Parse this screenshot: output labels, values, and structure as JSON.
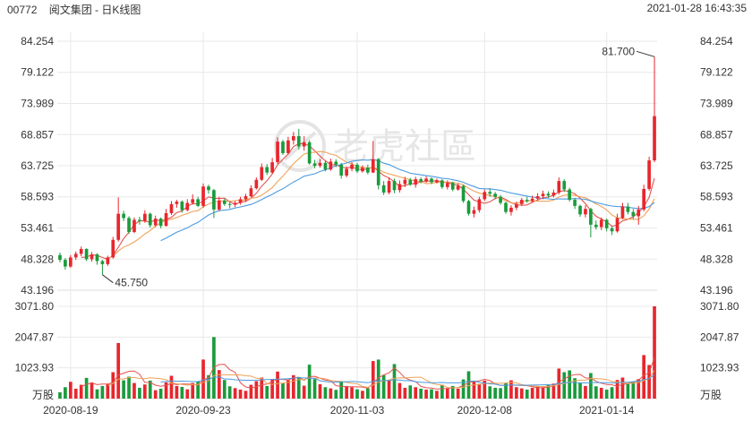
{
  "header": {
    "stock_code": "00772",
    "stock_name": "阅文集团 - 日K线图",
    "datetime": "2021-01-28 16:43:35"
  },
  "watermark": "老虎社區",
  "colors": {
    "up": "#e8262d",
    "down": "#1a9b3c",
    "ma5": "#e2534f",
    "ma10": "#f0a257",
    "ma20": "#4b9be0",
    "grid": "#e8e8e8"
  },
  "chart_data": {
    "type": "candlestick",
    "price_axis": {
      "ticks": [
        "84.254",
        "79.122",
        "73.989",
        "68.857",
        "63.725",
        "58.593",
        "53.461",
        "48.328",
        "43.196"
      ],
      "range": [
        43.196,
        84.254
      ]
    },
    "volume_axis": {
      "ticks": [
        "3071.80",
        "2047.87",
        "1023.93"
      ],
      "unit_label": "万股",
      "range": [
        0,
        3071.8
      ]
    },
    "date_labels": [
      "2020-08-19",
      "2020-09-23",
      "2020-11-03",
      "2020-12-08",
      "2021-01-14"
    ],
    "annotations": {
      "high": "81.700",
      "low": "45.750"
    },
    "moving_averages": [
      "MA5",
      "MA10",
      "MA20"
    ],
    "candles": [
      [
        49.0,
        48.2,
        49.4,
        47.8,
        210
      ],
      [
        48.2,
        47.1,
        48.5,
        46.6,
        380
      ],
      [
        47.1,
        48.6,
        49.0,
        46.9,
        560
      ],
      [
        48.6,
        49.2,
        49.6,
        48.2,
        330
      ],
      [
        49.2,
        50.0,
        50.4,
        48.8,
        460
      ],
      [
        50.0,
        48.3,
        50.1,
        48.0,
        690
      ],
      [
        48.3,
        49.1,
        49.5,
        47.9,
        540
      ],
      [
        49.1,
        48.0,
        49.3,
        47.4,
        310
      ],
      [
        48.0,
        47.5,
        48.2,
        45.75,
        420
      ],
      [
        47.5,
        48.6,
        48.9,
        47.2,
        480
      ],
      [
        48.6,
        51.5,
        52.0,
        48.4,
        880
      ],
      [
        51.5,
        55.8,
        58.5,
        51.2,
        1850
      ],
      [
        55.8,
        55.1,
        56.3,
        54.6,
        610
      ],
      [
        55.1,
        52.8,
        55.4,
        52.5,
        730
      ],
      [
        52.8,
        54.8,
        55.2,
        52.6,
        520
      ],
      [
        54.8,
        54.6,
        55.3,
        54.0,
        360
      ],
      [
        54.6,
        55.8,
        56.4,
        54.3,
        470
      ],
      [
        55.8,
        53.9,
        56.0,
        53.5,
        600
      ],
      [
        53.9,
        55.0,
        55.5,
        53.6,
        280
      ],
      [
        55.0,
        53.8,
        55.2,
        53.4,
        330
      ],
      [
        53.8,
        55.9,
        56.6,
        53.7,
        540
      ],
      [
        55.9,
        57.4,
        57.9,
        55.6,
        760
      ],
      [
        57.4,
        57.8,
        58.1,
        56.8,
        420
      ],
      [
        57.8,
        56.4,
        58.0,
        56.0,
        390
      ],
      [
        56.4,
        57.6,
        58.2,
        56.2,
        310
      ],
      [
        57.6,
        58.2,
        59.0,
        57.3,
        520
      ],
      [
        58.2,
        57.1,
        58.6,
        56.9,
        580
      ],
      [
        57.1,
        60.3,
        60.8,
        56.8,
        1300
      ],
      [
        60.3,
        59.7,
        60.6,
        59.1,
        780
      ],
      [
        59.7,
        56.5,
        59.9,
        55.1,
        2050
      ],
      [
        56.5,
        58.0,
        58.6,
        56.2,
        950
      ],
      [
        58.0,
        57.4,
        58.3,
        57.1,
        620
      ],
      [
        57.4,
        57.3,
        57.9,
        56.7,
        410
      ],
      [
        57.3,
        57.6,
        57.9,
        56.9,
        350
      ],
      [
        57.6,
        58.2,
        58.6,
        57.3,
        300
      ],
      [
        58.2,
        58.7,
        59.1,
        57.8,
        260
      ],
      [
        58.7,
        60.0,
        60.5,
        58.5,
        460
      ],
      [
        60.0,
        61.4,
        61.8,
        59.8,
        580
      ],
      [
        61.4,
        63.5,
        64.1,
        61.2,
        700
      ],
      [
        63.5,
        62.6,
        64.0,
        62.2,
        420
      ],
      [
        62.6,
        64.3,
        65.0,
        62.4,
        650
      ],
      [
        64.3,
        67.7,
        68.4,
        64.0,
        900
      ],
      [
        67.7,
        65.8,
        68.0,
        65.5,
        520
      ],
      [
        65.8,
        67.9,
        68.5,
        65.6,
        610
      ],
      [
        67.9,
        68.6,
        69.3,
        67.2,
        780
      ],
      [
        68.6,
        66.9,
        69.8,
        66.4,
        720
      ],
      [
        66.9,
        67.6,
        68.6,
        66.2,
        430
      ],
      [
        67.6,
        64.1,
        67.9,
        63.9,
        1130
      ],
      [
        64.1,
        63.7,
        64.7,
        63.3,
        650
      ],
      [
        63.7,
        64.2,
        64.8,
        63.4,
        480
      ],
      [
        64.2,
        63.1,
        64.6,
        62.8,
        380
      ],
      [
        63.1,
        64.4,
        64.9,
        62.9,
        340
      ],
      [
        64.4,
        63.9,
        64.8,
        63.5,
        290
      ],
      [
        63.9,
        62.1,
        64.2,
        61.6,
        560
      ],
      [
        62.1,
        63.2,
        63.6,
        61.8,
        420
      ],
      [
        63.2,
        63.9,
        64.3,
        62.8,
        380
      ],
      [
        63.9,
        62.8,
        64.2,
        62.5,
        310
      ],
      [
        62.8,
        63.4,
        63.8,
        62.6,
        260
      ],
      [
        63.4,
        62.6,
        63.9,
        62.3,
        340
      ],
      [
        62.6,
        64.8,
        67.8,
        62.5,
        1250
      ],
      [
        64.8,
        60.5,
        65.0,
        59.8,
        1300
      ],
      [
        60.5,
        59.3,
        61.2,
        58.9,
        780
      ],
      [
        59.3,
        61.2,
        61.8,
        59.0,
        620
      ],
      [
        61.2,
        59.7,
        61.6,
        59.2,
        1150
      ],
      [
        59.7,
        60.7,
        61.3,
        59.3,
        520
      ],
      [
        60.7,
        61.4,
        61.9,
        60.2,
        360
      ],
      [
        61.4,
        60.6,
        61.7,
        60.4,
        440
      ],
      [
        60.6,
        61.5,
        61.9,
        60.1,
        380
      ],
      [
        61.5,
        61.1,
        61.8,
        60.8,
        330
      ],
      [
        61.1,
        61.6,
        62.0,
        60.9,
        300
      ],
      [
        61.6,
        61.0,
        61.8,
        60.7,
        310
      ],
      [
        61.0,
        61.3,
        61.6,
        60.8,
        260
      ],
      [
        61.3,
        60.2,
        61.5,
        59.9,
        460
      ],
      [
        60.2,
        60.9,
        61.3,
        59.8,
        350
      ],
      [
        60.9,
        59.8,
        61.1,
        59.5,
        420
      ],
      [
        59.8,
        60.4,
        60.8,
        59.6,
        330
      ],
      [
        60.4,
        57.9,
        60.6,
        57.6,
        640
      ],
      [
        57.9,
        55.8,
        58.1,
        55.5,
        910
      ],
      [
        55.8,
        56.4,
        57.0,
        55.2,
        580
      ],
      [
        56.4,
        58.2,
        58.6,
        56.0,
        490
      ],
      [
        58.2,
        59.4,
        59.8,
        57.9,
        600
      ],
      [
        59.4,
        59.1,
        60.0,
        58.6,
        410
      ],
      [
        59.1,
        58.6,
        59.4,
        58.2,
        360
      ],
      [
        58.6,
        57.6,
        58.9,
        57.3,
        350
      ],
      [
        57.6,
        56.1,
        57.8,
        55.8,
        520
      ],
      [
        56.1,
        56.8,
        57.2,
        55.5,
        610
      ],
      [
        56.8,
        57.4,
        57.8,
        56.4,
        380
      ],
      [
        57.4,
        58.1,
        58.4,
        57.1,
        340
      ],
      [
        58.1,
        57.9,
        58.6,
        57.6,
        300
      ],
      [
        57.9,
        58.3,
        58.8,
        57.6,
        360
      ],
      [
        58.3,
        58.7,
        59.2,
        58.0,
        420
      ],
      [
        58.7,
        59.1,
        59.6,
        58.2,
        380
      ],
      [
        59.1,
        58.8,
        59.5,
        58.4,
        470
      ],
      [
        58.8,
        59.3,
        59.8,
        58.5,
        500
      ],
      [
        59.3,
        61.2,
        61.8,
        59.0,
        1000
      ],
      [
        61.2,
        59.8,
        61.5,
        59.4,
        880
      ],
      [
        59.8,
        58.1,
        60.1,
        57.8,
        940
      ],
      [
        58.1,
        57.1,
        58.4,
        56.6,
        680
      ],
      [
        57.1,
        55.7,
        57.3,
        55.3,
        520
      ],
      [
        55.7,
        56.6,
        57.2,
        55.2,
        420
      ],
      [
        56.6,
        54.0,
        56.8,
        51.9,
        850
      ],
      [
        54.0,
        53.6,
        54.7,
        53.2,
        410
      ],
      [
        53.6,
        54.8,
        55.2,
        53.1,
        360
      ],
      [
        54.8,
        53.4,
        55.0,
        52.9,
        300
      ],
      [
        53.4,
        52.9,
        53.8,
        52.3,
        380
      ],
      [
        52.9,
        55.1,
        55.8,
        52.7,
        620
      ],
      [
        55.1,
        57.0,
        57.6,
        54.9,
        700
      ],
      [
        57.0,
        56.1,
        57.6,
        55.7,
        510
      ],
      [
        56.1,
        55.4,
        56.6,
        54.9,
        570
      ],
      [
        55.4,
        56.5,
        57.1,
        54.0,
        650
      ],
      [
        56.5,
        59.9,
        60.6,
        56.2,
        1450
      ],
      [
        59.9,
        64.6,
        65.2,
        59.6,
        1120
      ],
      [
        64.6,
        71.9,
        81.7,
        64.3,
        3071.8
      ]
    ]
  }
}
